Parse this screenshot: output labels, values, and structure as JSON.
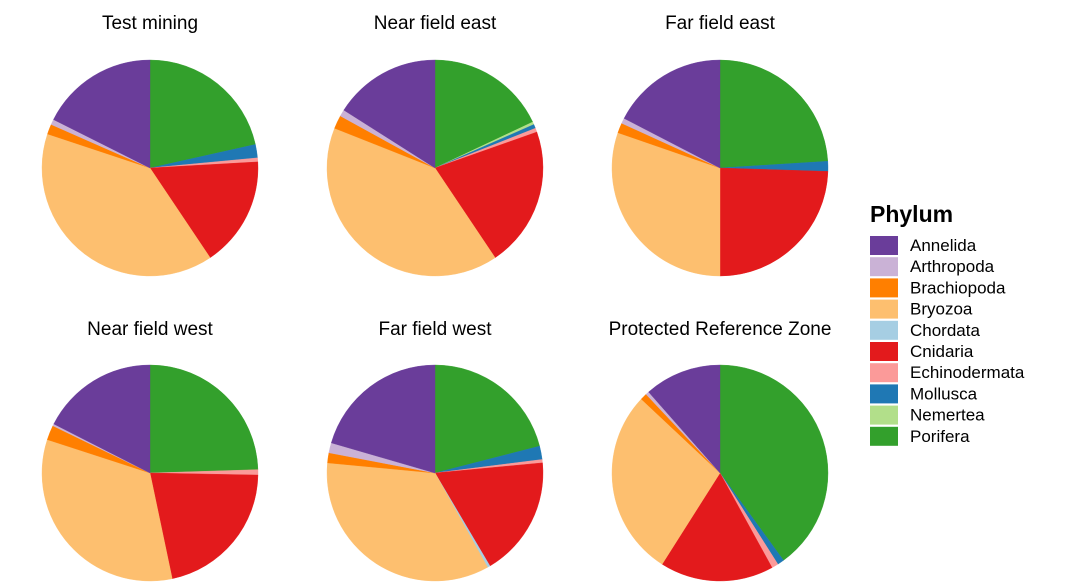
{
  "legend": {
    "title": "Phylum",
    "entries": [
      {
        "label": "Annelida",
        "color": "#6a3d9a"
      },
      {
        "label": "Arthropoda",
        "color": "#cab2d6"
      },
      {
        "label": "Brachiopoda",
        "color": "#ff7f00"
      },
      {
        "label": "Bryozoa",
        "color": "#fdbf6f"
      },
      {
        "label": "Chordata",
        "color": "#a6cee3"
      },
      {
        "label": "Cnidaria",
        "color": "#e31a1c"
      },
      {
        "label": "Echinodermata",
        "color": "#fb9a99"
      },
      {
        "label": "Mollusca",
        "color": "#1f78b4"
      },
      {
        "label": "Nemertea",
        "color": "#b2df8a"
      },
      {
        "label": "Porifera",
        "color": "#33a02c"
      }
    ]
  },
  "chart_data": [
    {
      "type": "pie",
      "title": "Test mining",
      "categories": [
        "Porifera",
        "Mollusca",
        "Echinodermata",
        "Cnidaria",
        "Bryozoa",
        "Brachiopoda",
        "Arthropoda",
        "Annelida"
      ],
      "values": [
        21.5,
        2.0,
        0.6,
        16.5,
        39.5,
        1.5,
        0.8,
        17.6
      ]
    },
    {
      "type": "pie",
      "title": "Near field east",
      "categories": [
        "Porifera",
        "Nemertea",
        "Mollusca",
        "Echinodermata",
        "Cnidaria",
        "Bryozoa",
        "Brachiopoda",
        "Arthropoda",
        "Annelida"
      ],
      "values": [
        18.0,
        0.4,
        0.6,
        0.6,
        21.0,
        40.4,
        2.0,
        1.0,
        16.0
      ]
    },
    {
      "type": "pie",
      "title": "Far field east",
      "categories": [
        "Porifera",
        "Mollusca",
        "Cnidaria",
        "Bryozoa",
        "Brachiopoda",
        "Arthropoda",
        "Annelida"
      ],
      "values": [
        24.0,
        1.5,
        24.5,
        30.3,
        1.5,
        0.8,
        17.4
      ]
    },
    {
      "type": "pie",
      "title": "Near field west",
      "categories": [
        "Porifera",
        "Echinodermata",
        "Cnidaria",
        "Bryozoa",
        "Brachiopoda",
        "Arthropoda",
        "Annelida"
      ],
      "values": [
        24.5,
        0.8,
        21.4,
        33.3,
        2.2,
        0.3,
        17.5
      ]
    },
    {
      "type": "pie",
      "title": "Far field west",
      "categories": [
        "Porifera",
        "Mollusca",
        "Echinodermata",
        "Cnidaria",
        "Chordata",
        "Bryozoa",
        "Brachiopoda",
        "Arthropoda",
        "Annelida"
      ],
      "values": [
        21.0,
        2.0,
        0.5,
        18.0,
        0.4,
        34.6,
        1.5,
        1.5,
        20.5
      ]
    },
    {
      "type": "pie",
      "title": "Protected Reference Zone",
      "categories": [
        "Porifera",
        "Mollusca",
        "Echinodermata",
        "Cnidaria",
        "Bryozoa",
        "Brachiopoda",
        "Arthropoda",
        "Annelida"
      ],
      "values": [
        40.0,
        1.0,
        1.0,
        17.0,
        28.0,
        1.0,
        0.5,
        11.5
      ]
    }
  ]
}
